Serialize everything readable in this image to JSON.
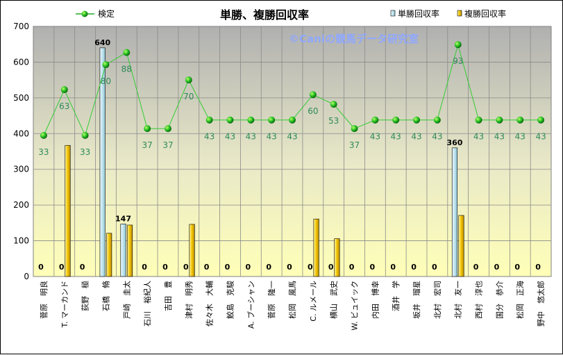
{
  "chart_data": {
    "type": "bar",
    "title": "単勝、複勝回収率",
    "watermark": "©Caniの競馬データ研究室",
    "ylim": [
      0,
      700
    ],
    "yticks": [
      0,
      100,
      200,
      300,
      400,
      500,
      600,
      700
    ],
    "legend": {
      "line": "検定",
      "win": "単勝回収率",
      "place": "複勝回収率"
    },
    "categories": [
      "菅原　明良",
      "T. マーカンド",
      "荻野　極",
      "石橋　脩",
      "戸崎　圭太",
      "石川　裕紀人",
      "吉田　豊",
      "津村　明秀",
      "佐々木　大輔",
      "鮫島　克駿",
      "A. ブーシャン",
      "菅原　隆一",
      "松岡　風馬",
      "C. ルメール",
      "横山　武史",
      "W. ビュイック",
      "内田　博幸",
      "酒井　学",
      "坂井　瑠星",
      "北村　宏司",
      "北村　友一",
      "西村　淳也",
      "国分　恭介",
      "松岡　正海",
      "野中　悠太郎"
    ],
    "series": [
      {
        "name": "単勝回収率",
        "color": "#bfe3ee",
        "values": [
          0,
          0,
          0,
          640,
          147,
          0,
          0,
          0,
          0,
          0,
          0,
          0,
          0,
          0,
          0,
          0,
          0,
          0,
          0,
          0,
          360,
          0,
          0,
          0,
          0
        ]
      },
      {
        "name": "複勝回収率",
        "color": "#f2c400",
        "values": [
          0,
          367,
          0,
          121,
          144,
          0,
          0,
          146,
          0,
          0,
          0,
          0,
          0,
          161,
          106,
          0,
          0,
          0,
          0,
          0,
          171,
          0,
          0,
          0,
          0
        ]
      },
      {
        "name": "検定",
        "color": "#22aa22",
        "values": [
          395,
          523,
          395,
          593,
          627,
          414,
          414,
          550,
          438,
          438,
          438,
          438,
          438,
          509,
          482,
          414,
          438,
          438,
          438,
          438,
          649,
          438,
          438,
          438,
          438
        ],
        "labels": [
          33,
          63,
          33,
          80,
          88,
          37,
          37,
          70,
          43,
          43,
          43,
          43,
          43,
          60,
          53,
          37,
          43,
          43,
          43,
          43,
          93,
          43,
          43,
          43,
          43
        ]
      }
    ],
    "bar_value_labels": [
      "0",
      "0",
      "0",
      "640",
      "147",
      "0",
      "0",
      "0",
      "0",
      "0",
      "0",
      "0",
      "0",
      "0",
      "0",
      "0",
      "0",
      "0",
      "0",
      "0",
      "360",
      "0",
      "0",
      "0",
      "0"
    ]
  }
}
